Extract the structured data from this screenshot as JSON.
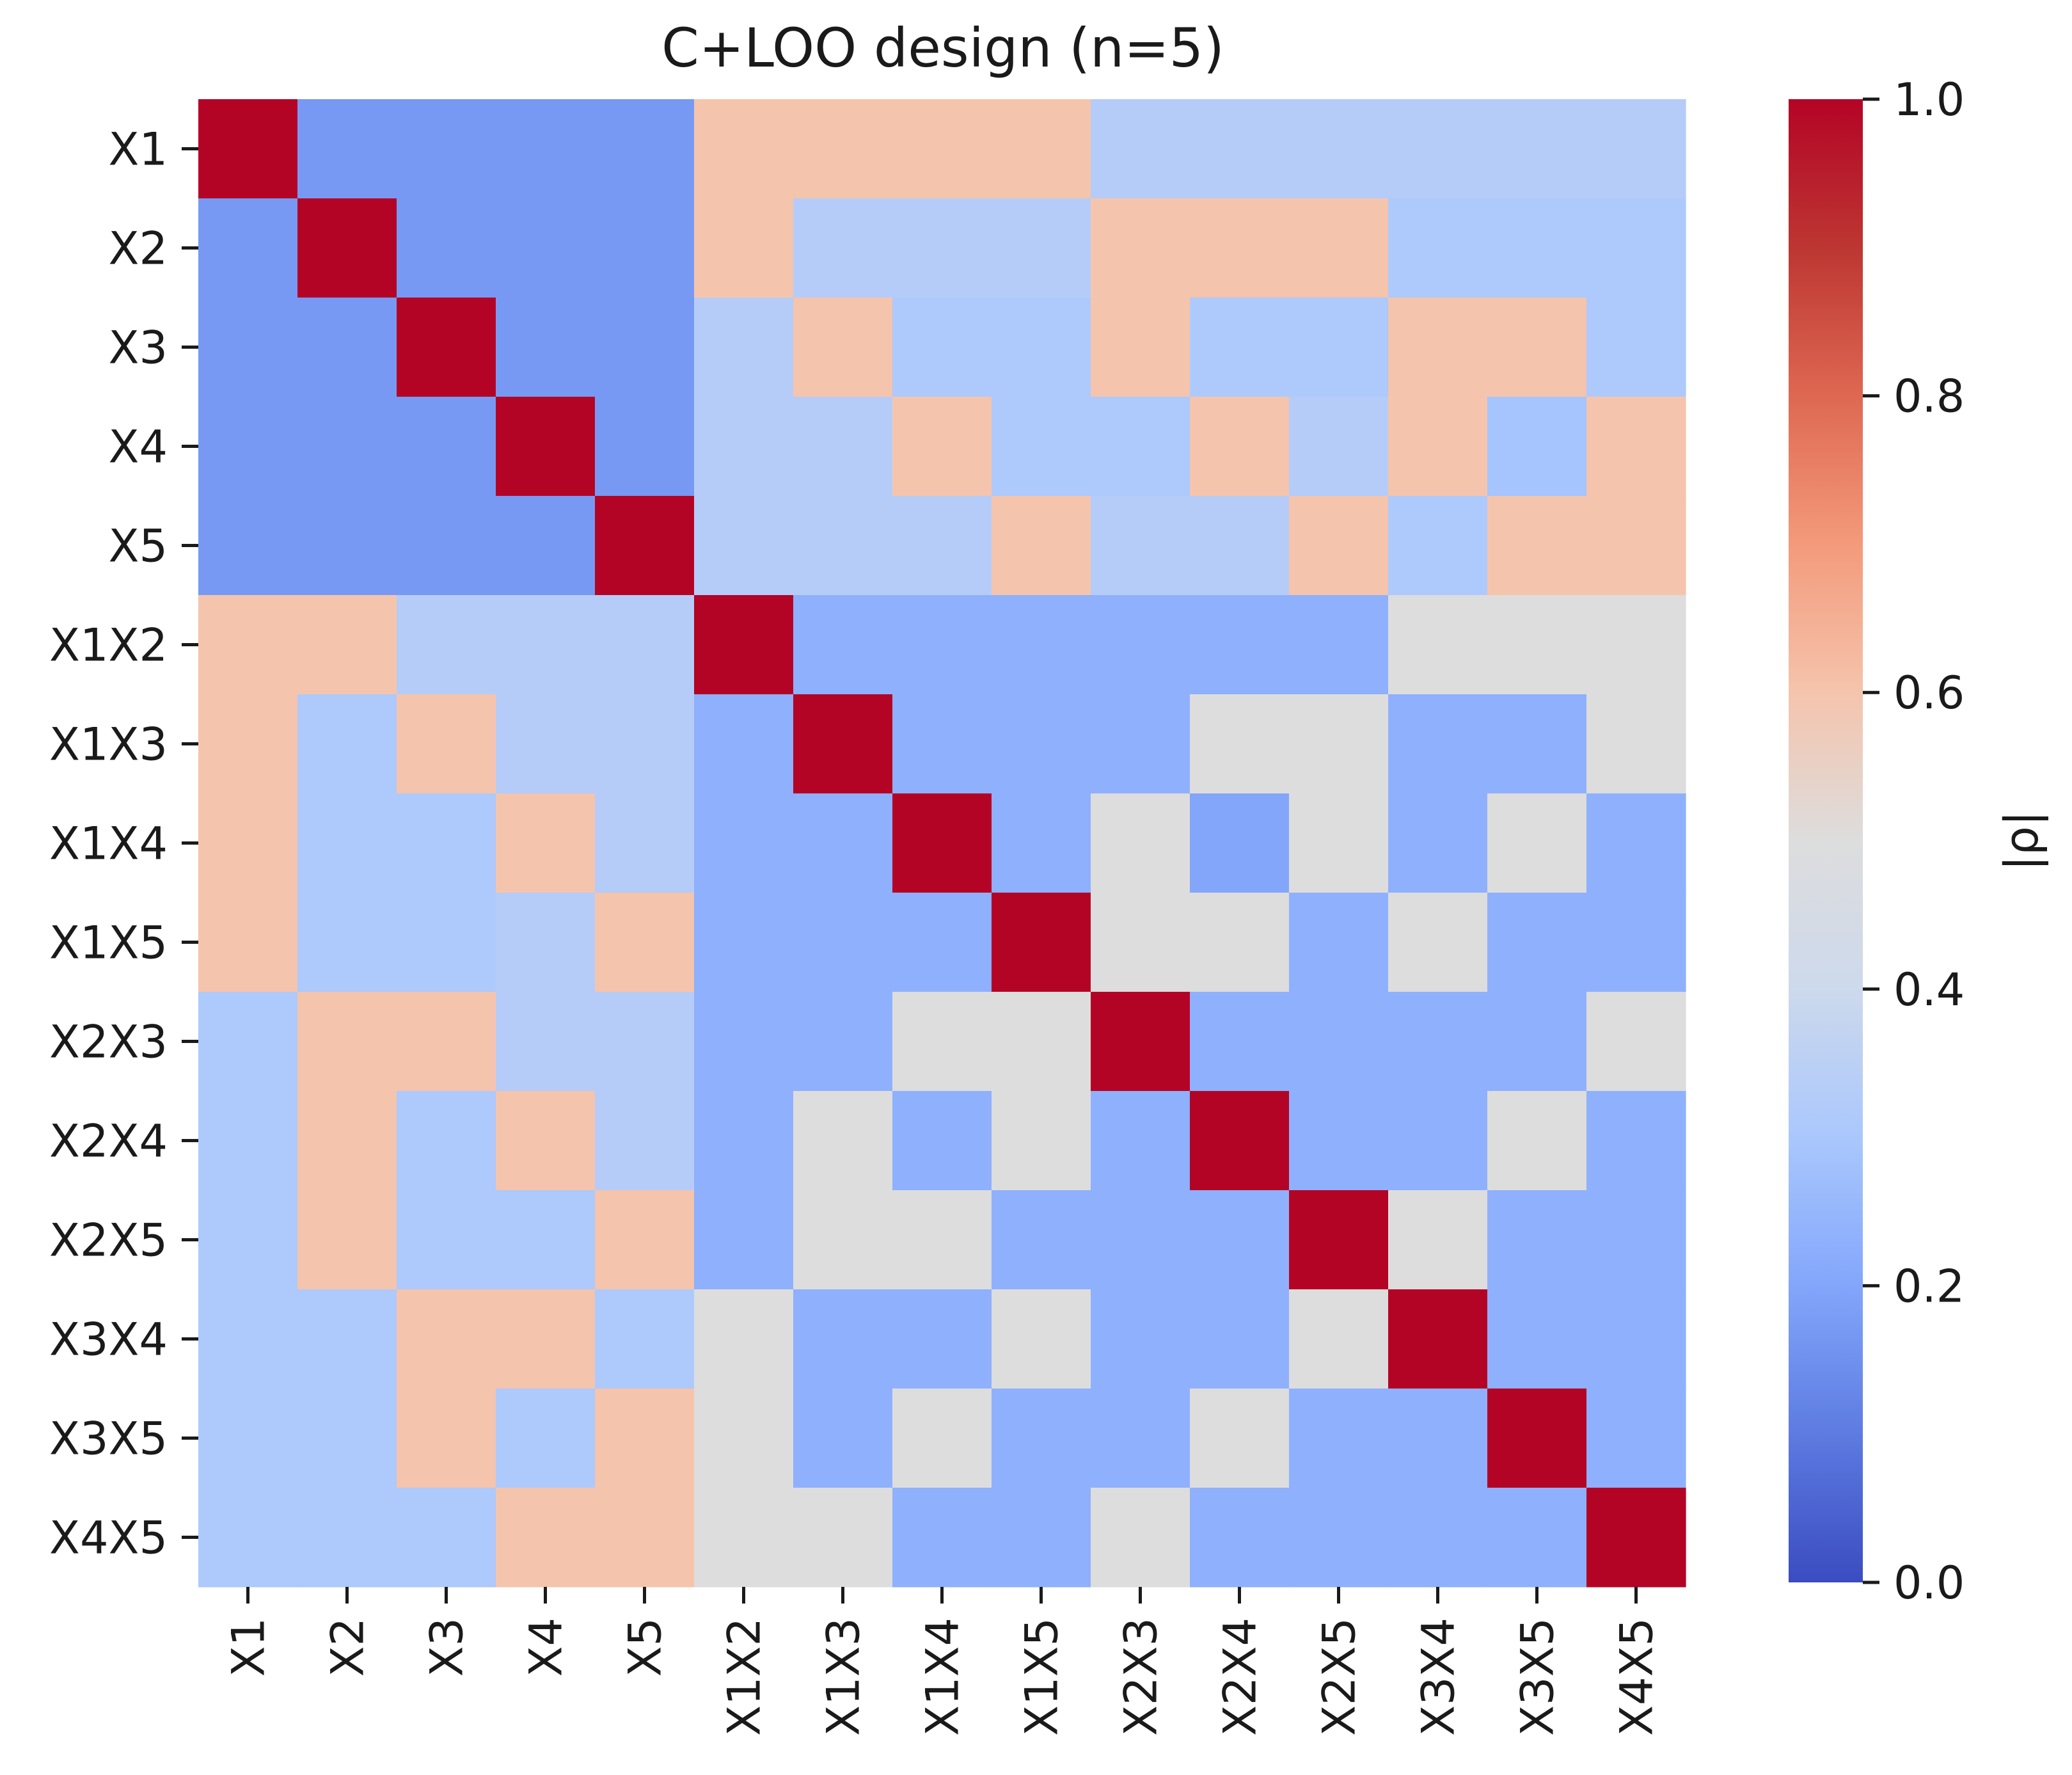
{
  "chart_data": {
    "type": "heatmap",
    "title": "C+LOO design (n=5)",
    "xlabel": "",
    "ylabel": "",
    "labels": [
      "X1",
      "X2",
      "X3",
      "X4",
      "X5",
      "X1X2",
      "X1X3",
      "X1X4",
      "X1X5",
      "X2X3",
      "X2X4",
      "X2X5",
      "X3X4",
      "X3X5",
      "X4X5"
    ],
    "colorbar": {
      "label": "|ρ|",
      "range": [
        0,
        1
      ],
      "ticks": [
        "0.0",
        "0.2",
        "0.4",
        "0.6",
        "0.8",
        "1.0"
      ],
      "colormap": "coolwarm"
    },
    "values": [
      [
        1.0,
        0.17,
        0.17,
        0.17,
        0.17,
        0.6,
        0.6,
        0.6,
        0.6,
        0.33,
        0.33,
        0.33,
        0.33,
        0.33,
        0.33
      ],
      [
        0.17,
        1.0,
        0.17,
        0.17,
        0.17,
        0.6,
        0.33,
        0.33,
        0.33,
        0.6,
        0.6,
        0.6,
        0.31,
        0.31,
        0.31
      ],
      [
        0.17,
        0.17,
        1.0,
        0.17,
        0.17,
        0.33,
        0.6,
        0.31,
        0.31,
        0.6,
        0.31,
        0.31,
        0.6,
        0.6,
        0.31
      ],
      [
        0.17,
        0.17,
        0.17,
        1.0,
        0.17,
        0.33,
        0.33,
        0.6,
        0.31,
        0.31,
        0.6,
        0.33,
        0.6,
        0.29,
        0.6
      ],
      [
        0.17,
        0.17,
        0.17,
        0.17,
        1.0,
        0.33,
        0.33,
        0.33,
        0.6,
        0.33,
        0.33,
        0.6,
        0.31,
        0.6,
        0.6
      ],
      [
        0.6,
        0.6,
        0.33,
        0.33,
        0.33,
        1.0,
        0.23,
        0.23,
        0.23,
        0.23,
        0.23,
        0.23,
        0.5,
        0.5,
        0.5
      ],
      [
        0.6,
        0.31,
        0.6,
        0.33,
        0.33,
        0.23,
        1.0,
        0.23,
        0.23,
        0.23,
        0.5,
        0.5,
        0.23,
        0.23,
        0.5
      ],
      [
        0.6,
        0.31,
        0.31,
        0.6,
        0.33,
        0.23,
        0.23,
        1.0,
        0.23,
        0.5,
        0.2,
        0.5,
        0.23,
        0.5,
        0.23
      ],
      [
        0.6,
        0.31,
        0.31,
        0.33,
        0.6,
        0.23,
        0.23,
        0.23,
        1.0,
        0.5,
        0.5,
        0.23,
        0.5,
        0.23,
        0.23
      ],
      [
        0.31,
        0.6,
        0.6,
        0.33,
        0.33,
        0.23,
        0.23,
        0.5,
        0.5,
        1.0,
        0.23,
        0.23,
        0.23,
        0.23,
        0.5
      ],
      [
        0.31,
        0.6,
        0.31,
        0.6,
        0.33,
        0.23,
        0.5,
        0.23,
        0.5,
        0.23,
        1.0,
        0.23,
        0.23,
        0.5,
        0.23
      ],
      [
        0.31,
        0.6,
        0.31,
        0.31,
        0.6,
        0.23,
        0.5,
        0.5,
        0.23,
        0.23,
        0.23,
        1.0,
        0.5,
        0.23,
        0.23
      ],
      [
        0.31,
        0.31,
        0.6,
        0.6,
        0.31,
        0.5,
        0.23,
        0.23,
        0.5,
        0.23,
        0.23,
        0.5,
        1.0,
        0.23,
        0.23
      ],
      [
        0.31,
        0.31,
        0.6,
        0.31,
        0.6,
        0.5,
        0.23,
        0.5,
        0.23,
        0.23,
        0.5,
        0.23,
        0.23,
        1.0,
        0.23
      ],
      [
        0.31,
        0.31,
        0.31,
        0.6,
        0.6,
        0.5,
        0.5,
        0.23,
        0.23,
        0.5,
        0.23,
        0.23,
        0.23,
        0.23,
        1.0
      ]
    ]
  }
}
